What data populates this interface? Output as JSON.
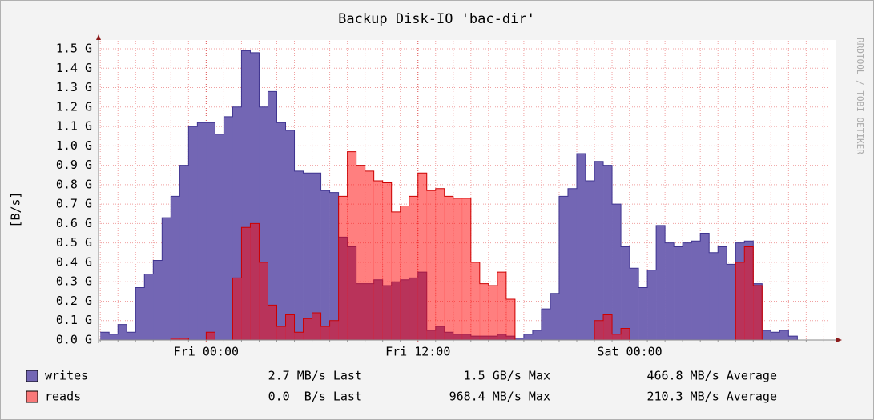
{
  "chart_data": {
    "type": "step-area",
    "title": "Backup Disk-IO 'bac-dir'",
    "y_label": "[B/s]",
    "watermark": "RRDTOOL / TOBI OETIKER",
    "xlim": [
      -6.1,
      35.3
    ],
    "xticks": [
      {
        "value": 0,
        "label": "Fri 00:00"
      },
      {
        "value": 12,
        "label": "Fri 12:00"
      },
      {
        "value": 24,
        "label": "Sat 00:00"
      }
    ],
    "ylim": [
      0,
      1.5
    ],
    "yticks": [
      {
        "value": 0,
        "label": "0.0 G"
      },
      {
        "value": 0.1,
        "label": "0.1 G"
      },
      {
        "value": 0.2,
        "label": "0.2 G"
      },
      {
        "value": 0.3,
        "label": "0.3 G"
      },
      {
        "value": 0.4,
        "label": "0.4 G"
      },
      {
        "value": 0.5,
        "label": "0.5 G"
      },
      {
        "value": 0.6,
        "label": "0.6 G"
      },
      {
        "value": 0.7,
        "label": "0.7 G"
      },
      {
        "value": 0.8,
        "label": "0.8 G"
      },
      {
        "value": 0.9,
        "label": "0.9 G"
      },
      {
        "value": 1.0,
        "label": "1.0 G"
      },
      {
        "value": 1.1,
        "label": "1.1 G"
      },
      {
        "value": 1.2,
        "label": "1.2 G"
      },
      {
        "value": 1.3,
        "label": "1.3 G"
      },
      {
        "value": 1.4,
        "label": "1.4 G"
      },
      {
        "value": 1.5,
        "label": "1.5 G"
      }
    ],
    "grid": true,
    "step": 0.5,
    "x": [
      -6.0,
      -5.5,
      -5.0,
      -4.5,
      -4.0,
      -3.5,
      -3.0,
      -2.5,
      -2.0,
      -1.5,
      -1.0,
      -0.5,
      0.0,
      0.5,
      1.0,
      1.5,
      2.0,
      2.5,
      3.0,
      3.5,
      4.0,
      4.5,
      5.0,
      5.5,
      6.0,
      6.5,
      7.0,
      7.5,
      8.0,
      8.5,
      9.0,
      9.5,
      10.0,
      10.5,
      11.0,
      11.5,
      12.0,
      12.5,
      13.0,
      13.5,
      14.0,
      14.5,
      15.0,
      15.5,
      16.0,
      16.5,
      17.0,
      17.5,
      18.0,
      18.5,
      19.0,
      19.5,
      20.0,
      20.5,
      21.0,
      21.5,
      22.0,
      22.5,
      23.0,
      23.5,
      24.0,
      24.5,
      25.0,
      25.5,
      26.0,
      26.5,
      27.0,
      27.5,
      28.0,
      28.5,
      29.0,
      29.5,
      30.0,
      30.5,
      31.0,
      31.5,
      32.0,
      32.5,
      33.0,
      33.5,
      34.0,
      34.5
    ],
    "series": [
      {
        "name": "writes",
        "color": "#7366b4",
        "line_color": "#3f3490",
        "stats": [
          "2.7 MB/s Last",
          "1.5 GB/s Max",
          "466.8 MB/s Average"
        ],
        "values": [
          0.04,
          0.03,
          0.08,
          0.04,
          0.27,
          0.34,
          0.41,
          0.63,
          0.74,
          0.9,
          1.1,
          1.12,
          1.12,
          1.06,
          1.15,
          1.2,
          1.49,
          1.48,
          1.2,
          1.28,
          1.12,
          1.08,
          0.87,
          0.86,
          0.86,
          0.77,
          0.76,
          0.53,
          0.48,
          0.29,
          0.29,
          0.31,
          0.28,
          0.3,
          0.31,
          0.32,
          0.35,
          0.05,
          0.07,
          0.04,
          0.03,
          0.03,
          0.02,
          0.02,
          0.02,
          0.03,
          0.02,
          0.01,
          0.03,
          0.05,
          0.16,
          0.24,
          0.74,
          0.78,
          0.96,
          0.82,
          0.92,
          0.9,
          0.7,
          0.48,
          0.37,
          0.27,
          0.36,
          0.59,
          0.5,
          0.48,
          0.5,
          0.51,
          0.55,
          0.45,
          0.48,
          0.39,
          0.5,
          0.51,
          0.29,
          0.05,
          0.04,
          0.05,
          0.02,
          0,
          0,
          0
        ]
      },
      {
        "name": "reads",
        "color": "#ff000080",
        "line_color": "#cc0000",
        "stats": [
          "0.0  B/s Last",
          "968.4 MB/s Max",
          "210.3 MB/s Average"
        ],
        "values": [
          0,
          0,
          0,
          0,
          0,
          0,
          0,
          0,
          0.01,
          0.01,
          0,
          0,
          0.04,
          0,
          0,
          0.32,
          0.58,
          0.6,
          0.4,
          0.18,
          0.07,
          0.13,
          0.04,
          0.11,
          0.14,
          0.07,
          0.1,
          0.74,
          0.97,
          0.9,
          0.87,
          0.82,
          0.81,
          0.66,
          0.69,
          0.74,
          0.86,
          0.77,
          0.78,
          0.74,
          0.73,
          0.73,
          0.4,
          0.29,
          0.28,
          0.35,
          0.21,
          0,
          0,
          0,
          0,
          0,
          0,
          0,
          0,
          0,
          0.1,
          0.13,
          0.03,
          0.06,
          0,
          0,
          0,
          0,
          0,
          0,
          0,
          0,
          0,
          0,
          0,
          0,
          0.4,
          0.48,
          0.28,
          0,
          0,
          0,
          0,
          0,
          0,
          0
        ]
      }
    ]
  }
}
